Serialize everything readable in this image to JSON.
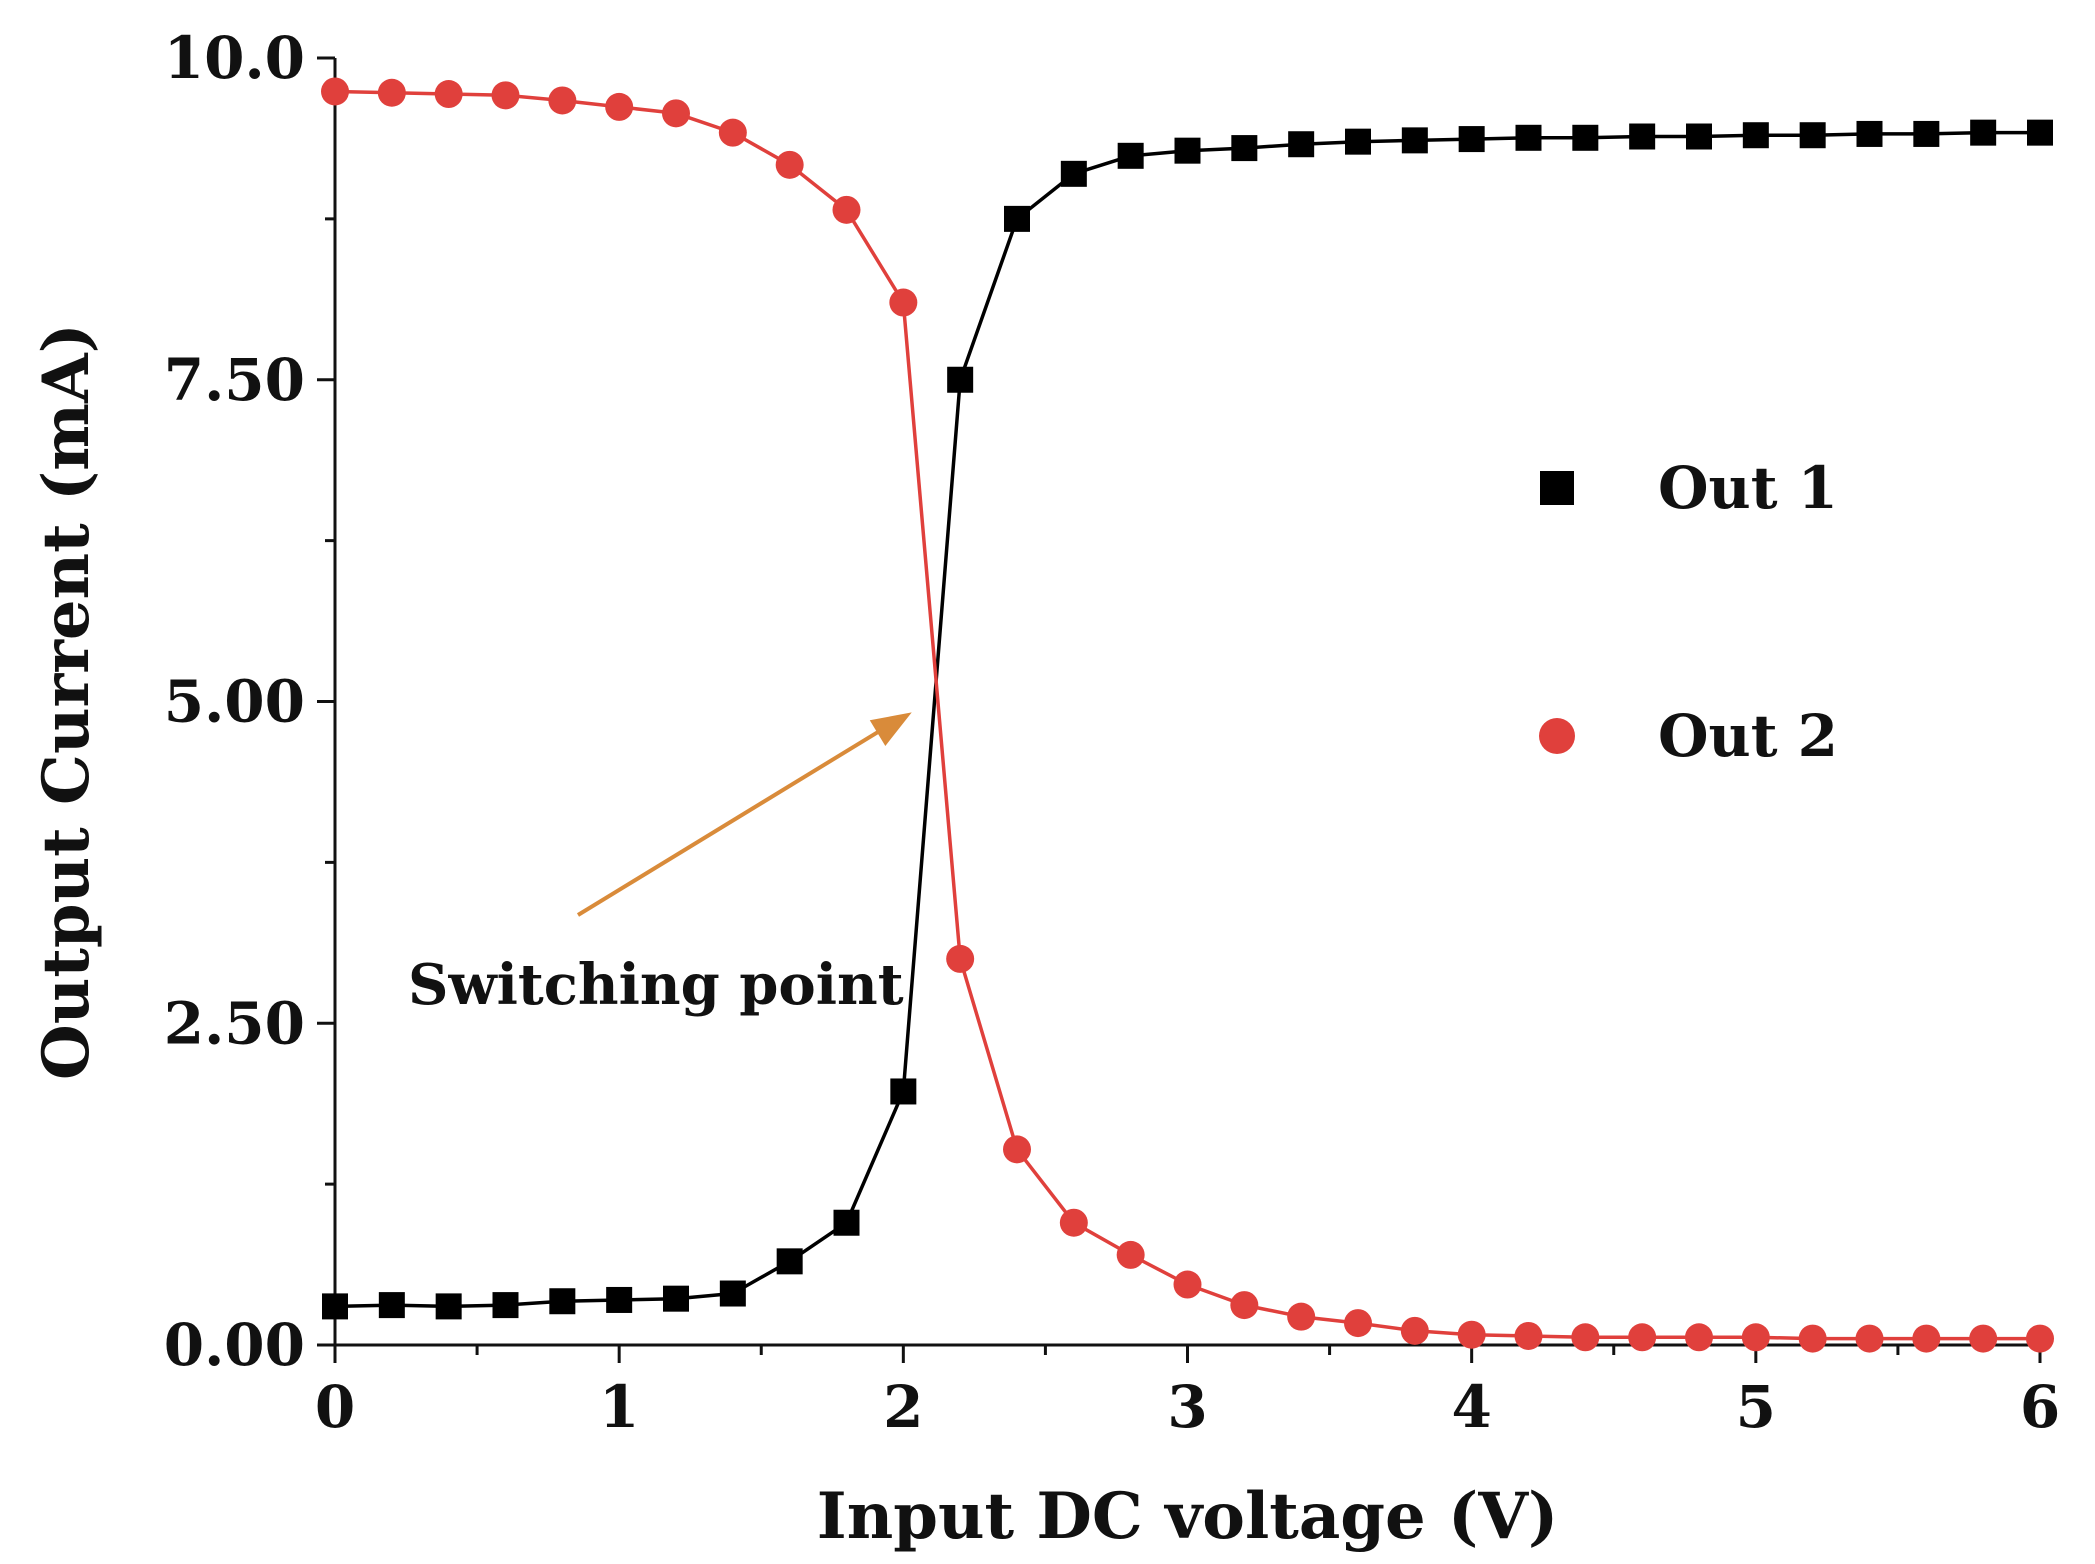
{
  "chart_data": {
    "type": "line",
    "xlabel": "Input DC voltage (V)",
    "ylabel": "Output Current (mA)",
    "xlim": [
      0,
      6
    ],
    "ylim": [
      0,
      10
    ],
    "x_ticks": [
      0,
      1,
      2,
      3,
      4,
      5,
      6
    ],
    "x_tick_labels": [
      "0",
      "1",
      "2",
      "3",
      "4",
      "5",
      "6"
    ],
    "y_ticks": [
      0,
      2.5,
      5,
      7.5,
      10
    ],
    "y_tick_labels": [
      "0.00",
      "2.50",
      "5.00",
      "7.50",
      "10.0"
    ],
    "grid": false,
    "legend_position": "right",
    "x": [
      0,
      0.2,
      0.4,
      0.6,
      0.8,
      1.0,
      1.2,
      1.4,
      1.6,
      1.8,
      2.0,
      2.2,
      2.4,
      2.6,
      2.8,
      3.0,
      3.2,
      3.4,
      3.6,
      3.8,
      4.0,
      4.2,
      4.4,
      4.6,
      4.8,
      5.0,
      5.2,
      5.4,
      5.6,
      5.8,
      6.0
    ],
    "series": [
      {
        "name": "Out 1",
        "marker": "square",
        "color": "#000000",
        "values": [
          0.3,
          0.31,
          0.3,
          0.31,
          0.34,
          0.35,
          0.36,
          0.4,
          0.65,
          0.95,
          1.97,
          7.5,
          8.75,
          9.1,
          9.24,
          9.28,
          9.3,
          9.33,
          9.35,
          9.36,
          9.37,
          9.38,
          9.38,
          9.39,
          9.39,
          9.4,
          9.4,
          9.41,
          9.41,
          9.42,
          9.42
        ]
      },
      {
        "name": "Out 2",
        "marker": "circle",
        "color": "#e0403c",
        "values": [
          9.74,
          9.73,
          9.72,
          9.71,
          9.67,
          9.62,
          9.57,
          9.42,
          9.17,
          8.82,
          8.1,
          3.0,
          1.52,
          0.95,
          0.7,
          0.47,
          0.31,
          0.22,
          0.17,
          0.11,
          0.08,
          0.07,
          0.06,
          0.06,
          0.06,
          0.06,
          0.05,
          0.05,
          0.05,
          0.05,
          0.05
        ]
      }
    ],
    "annotations": [
      {
        "text": "Switching point",
        "target_x": 2.1,
        "target_y": 4.9,
        "arrow_color": "#d98b3a"
      }
    ]
  }
}
